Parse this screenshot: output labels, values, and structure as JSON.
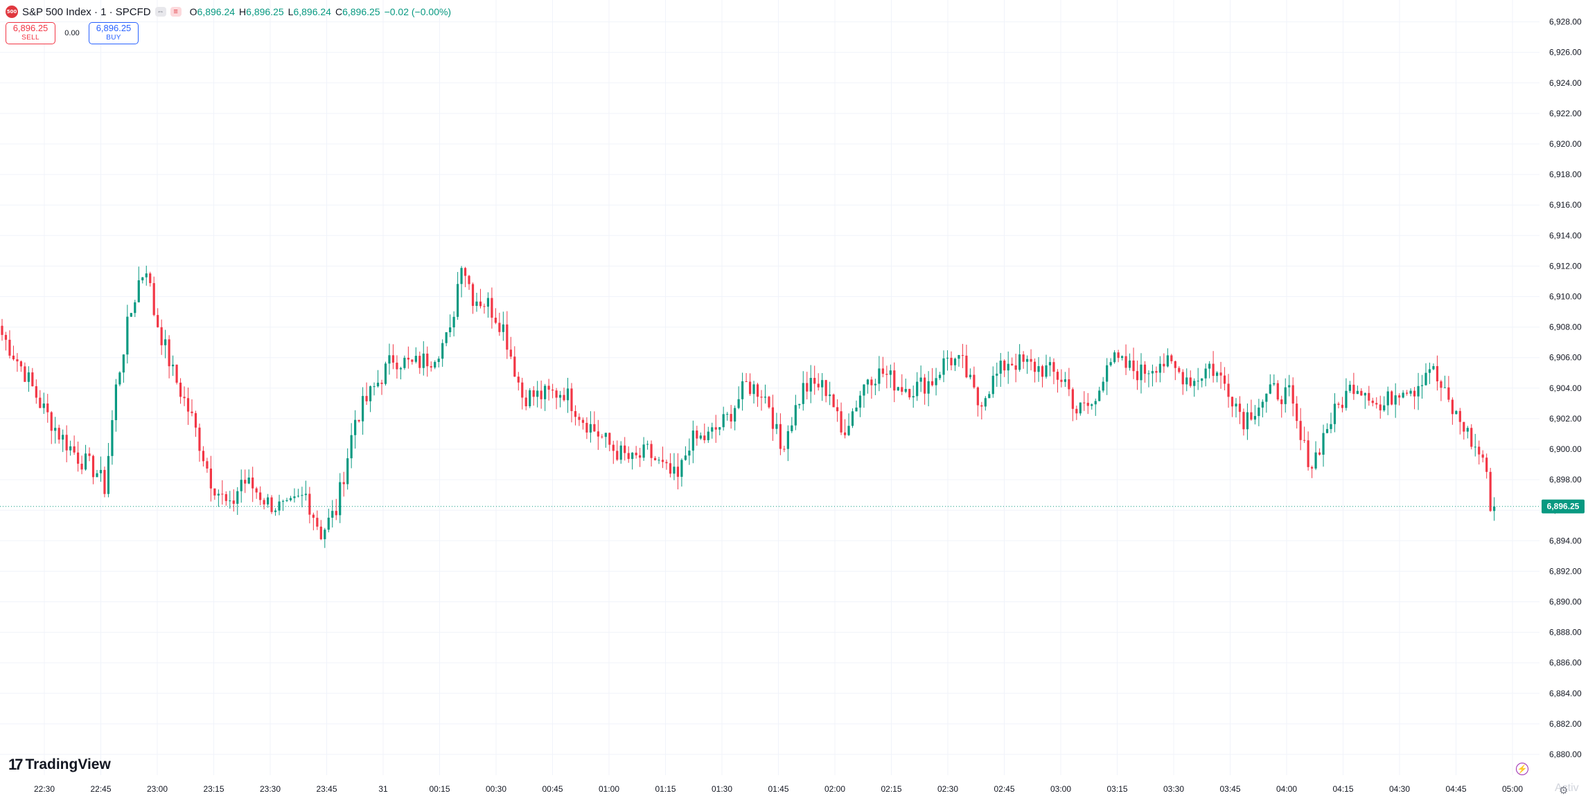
{
  "legend": {
    "badge": "500",
    "symbol": "S&P 500 Index · 1 · SPCFD",
    "indicator_a": "⇔",
    "indicator_b": "≡",
    "o_label": "O",
    "o_value": "6,896.24",
    "h_label": "H",
    "h_value": "6,896.25",
    "l_label": "L",
    "l_value": "6,896.24",
    "c_label": "C",
    "c_value": "6,896.25",
    "change": "−0.02 (−0.00%)"
  },
  "trade": {
    "sell_price": "6,896.25",
    "sell_label": "SELL",
    "spread": "0.00",
    "buy_price": "6,896.25",
    "buy_label": "BUY"
  },
  "branding": {
    "logo_mark": "17",
    "logo_text": "TradingView",
    "watermark": "Activ"
  },
  "icons": {
    "flash": "lightning-icon",
    "settings": "gear-icon"
  },
  "colors": {
    "up": "#089981",
    "down": "#f23645",
    "grid": "#f0f3fa",
    "axis_text": "#131722",
    "last_price_bg": "#089981"
  },
  "chart_data": {
    "type": "candlestick",
    "interval_minutes": 1,
    "ylim": [
      6879,
      6929
    ],
    "grid": true,
    "y_ticks": [
      "6,880.00",
      "6,882.00",
      "6,884.00",
      "6,886.00",
      "6,888.00",
      "6,890.00",
      "6,892.00",
      "6,894.00",
      "6,896.00",
      "6,898.00",
      "6,900.00",
      "6,902.00",
      "6,904.00",
      "6,906.00",
      "6,908.00",
      "6,910.00",
      "6,912.00",
      "6,914.00",
      "6,916.00",
      "6,918.00",
      "6,920.00",
      "6,922.00",
      "6,924.00",
      "6,926.00",
      "6,928.00"
    ],
    "x_ticks": [
      "22:30",
      "22:45",
      "23:00",
      "23:15",
      "23:30",
      "23:45",
      "31",
      "00:15",
      "00:30",
      "00:45",
      "01:00",
      "01:15",
      "01:30",
      "01:45",
      "02:00",
      "02:15",
      "02:30",
      "02:45",
      "03:00",
      "03:15",
      "03:30",
      "03:45",
      "04:00",
      "04:15",
      "04:30",
      "04:45",
      "05:00"
    ],
    "last_price": 6896.25,
    "last_price_label": "6,896.25",
    "trend_close": [
      [
        0,
        6907.5
      ],
      [
        6,
        6905.0
      ],
      [
        10,
        6903.0
      ],
      [
        15,
        6901.0
      ],
      [
        20,
        6899.5
      ],
      [
        25,
        6898.5
      ],
      [
        27,
        6897.5
      ],
      [
        30,
        6904.0
      ],
      [
        33,
        6908.0
      ],
      [
        36,
        6911.0
      ],
      [
        38,
        6912.0
      ],
      [
        40,
        6909.0
      ],
      [
        45,
        6905.0
      ],
      [
        50,
        6902.0
      ],
      [
        55,
        6898.0
      ],
      [
        60,
        6896.0
      ],
      [
        63,
        6898.0
      ],
      [
        66,
        6897.5
      ],
      [
        70,
        6896.5
      ],
      [
        75,
        6896.0
      ],
      [
        80,
        6897.0
      ],
      [
        84,
        6894.5
      ],
      [
        88,
        6896.0
      ],
      [
        93,
        6902.0
      ],
      [
        98,
        6904.0
      ],
      [
        103,
        6906.0
      ],
      [
        108,
        6905.5
      ],
      [
        113,
        6906.0
      ],
      [
        118,
        6907.5
      ],
      [
        121,
        6912.5
      ],
      [
        124,
        6910.0
      ],
      [
        128,
        6909.5
      ],
      [
        132,
        6908.0
      ],
      [
        137,
        6903.5
      ],
      [
        142,
        6903.5
      ],
      [
        148,
        6903.8
      ],
      [
        153,
        6902.0
      ],
      [
        157,
        6901.0
      ],
      [
        161,
        6900.0
      ],
      [
        166,
        6899.2
      ],
      [
        170,
        6899.8
      ],
      [
        175,
        6898.5
      ],
      [
        178,
        6898.0
      ],
      [
        181,
        6900.5
      ],
      [
        186,
        6900.8
      ],
      [
        191,
        6902.0
      ],
      [
        196,
        6904.2
      ],
      [
        200,
        6903.8
      ],
      [
        202,
        6903.0
      ],
      [
        205,
        6900.0
      ],
      [
        208,
        6902.0
      ],
      [
        211,
        6904.0
      ],
      [
        215,
        6904.2
      ],
      [
        218,
        6903.8
      ],
      [
        221,
        6901.0
      ],
      [
        224,
        6902.5
      ],
      [
        228,
        6904.8
      ],
      [
        232,
        6905.0
      ],
      [
        236,
        6904.2
      ],
      [
        240,
        6904.0
      ],
      [
        245,
        6904.5
      ],
      [
        249,
        6906.0
      ],
      [
        253,
        6905.5
      ],
      [
        257,
        6903.0
      ],
      [
        261,
        6904.5
      ],
      [
        265,
        6905.8
      ],
      [
        270,
        6905.5
      ],
      [
        275,
        6905.2
      ],
      [
        280,
        6904.5
      ],
      [
        283,
        6902.5
      ],
      [
        288,
        6903.0
      ],
      [
        291,
        6906.0
      ],
      [
        295,
        6905.5
      ],
      [
        300,
        6905.0
      ],
      [
        305,
        6905.8
      ],
      [
        310,
        6905.0
      ],
      [
        314,
        6904.5
      ],
      [
        318,
        6905.5
      ],
      [
        323,
        6904.0
      ],
      [
        327,
        6902.0
      ],
      [
        331,
        6903.0
      ],
      [
        335,
        6903.8
      ],
      [
        339,
        6903.5
      ],
      [
        342,
        6900.5
      ],
      [
        345,
        6899.0
      ],
      [
        349,
        6901.5
      ],
      [
        353,
        6903.2
      ],
      [
        356,
        6904.3
      ],
      [
        360,
        6903.8
      ],
      [
        363,
        6902.5
      ],
      [
        366,
        6903.5
      ],
      [
        369,
        6904.2
      ],
      [
        372,
        6904.0
      ],
      [
        376,
        6905.5
      ],
      [
        379,
        6904.0
      ],
      [
        382,
        6902.5
      ],
      [
        385,
        6901.5
      ],
      [
        388,
        6900.0
      ],
      [
        390,
        6899.5
      ],
      [
        392,
        6896.5
      ],
      [
        393,
        6896.25
      ]
    ]
  }
}
